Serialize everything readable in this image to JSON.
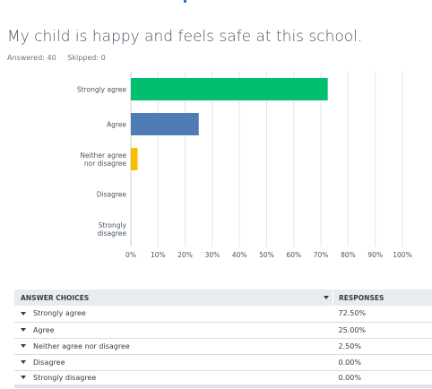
{
  "question": {
    "title": "My child is happy and feels safe at this school.",
    "answered": "Answered: 40",
    "skipped": "Skipped: 0"
  },
  "chart_data": {
    "type": "bar",
    "orientation": "horizontal",
    "categories": [
      "Strongly agree",
      "Agree",
      "Neither agree nor disagree",
      "Disagree",
      "Strongly disagree"
    ],
    "category_label_lines": [
      [
        "Strongly agree"
      ],
      [
        "Agree"
      ],
      [
        "Neither agree",
        "nor disagree"
      ],
      [
        "Disagree"
      ],
      [
        "Strongly",
        "disagree"
      ]
    ],
    "values": [
      72.5,
      25.0,
      2.5,
      0.0,
      0.0
    ],
    "colors": [
      "#00bf6f",
      "#507cb6",
      "#f9be00",
      "#6bc8cd",
      "#ff8b4f"
    ],
    "xlim": [
      0,
      100
    ],
    "ticks": [
      "0%",
      "10%",
      "20%",
      "30%",
      "40%",
      "50%",
      "60%",
      "70%",
      "80%",
      "90%",
      "100%"
    ],
    "grid": true,
    "title": "",
    "xlabel": "",
    "ylabel": ""
  },
  "table": {
    "headers": {
      "choices": "ANSWER CHOICES",
      "responses": "RESPONSES"
    },
    "rows": [
      {
        "choice": "Strongly agree",
        "response": "72.50%"
      },
      {
        "choice": "Agree",
        "response": "25.00%"
      },
      {
        "choice": "Neither agree nor disagree",
        "response": "2.50%"
      },
      {
        "choice": "Disagree",
        "response": "0.00%"
      },
      {
        "choice": "Strongly disagree",
        "response": "0.00%"
      }
    ]
  }
}
